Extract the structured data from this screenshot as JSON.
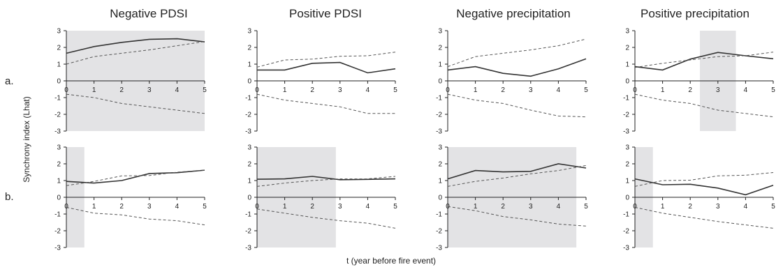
{
  "figure": {
    "ylabel": "Synchrony index (Lhat)",
    "xlabel": "t (year before fire event)",
    "row_labels": [
      "a.",
      "b."
    ],
    "column_titles": [
      "Negative PDSI",
      "Positive PDSI",
      "Negative precipitation",
      "Positive precipitation"
    ],
    "x_ticks": [
      "0",
      "1",
      "2",
      "3",
      "4",
      "5"
    ],
    "y_ticks": [
      "3",
      "2",
      "1",
      "0",
      "-1",
      "-2",
      "-3"
    ]
  },
  "colors": {
    "line": "#333333",
    "dashed": "#555555",
    "shade": "#e3e3e5",
    "axis": "#222222"
  },
  "chart_data": [
    {
      "type": "line",
      "row": "a.",
      "title": "Negative PDSI",
      "x": [
        0,
        1,
        2,
        3,
        4,
        5
      ],
      "xlim": [
        0,
        5
      ],
      "ylim": [
        -3,
        3
      ],
      "series": [
        {
          "values": [
            1.65,
            2.05,
            2.3,
            2.48,
            2.52,
            2.33
          ]
        },
        {
          "values": [
            1.0,
            1.45,
            1.65,
            1.85,
            2.1,
            2.35
          ]
        },
        {
          "values": [
            -0.8,
            -1.0,
            -1.35,
            -1.55,
            -1.75,
            -1.95
          ]
        }
      ],
      "shaded_x": [
        0,
        5
      ]
    },
    {
      "type": "line",
      "row": "a.",
      "title": "Positive PDSI",
      "x": [
        0,
        1,
        2,
        3,
        4,
        5
      ],
      "xlim": [
        0,
        5
      ],
      "ylim": [
        -3,
        3
      ],
      "series": [
        {
          "values": [
            0.65,
            0.65,
            1.05,
            1.1,
            0.48,
            0.72
          ]
        },
        {
          "values": [
            0.82,
            1.25,
            1.3,
            1.47,
            1.5,
            1.72
          ]
        },
        {
          "values": [
            -0.8,
            -1.15,
            -1.35,
            -1.55,
            -1.95,
            -1.95
          ]
        }
      ],
      "shaded_x": null
    },
    {
      "type": "line",
      "row": "a.",
      "title": "Negative precipitation",
      "x": [
        0,
        1,
        2,
        3,
        4,
        5
      ],
      "xlim": [
        0,
        5
      ],
      "ylim": [
        -3,
        3
      ],
      "series": [
        {
          "values": [
            0.65,
            0.85,
            0.45,
            0.28,
            0.72,
            1.32
          ]
        },
        {
          "values": [
            0.85,
            1.45,
            1.65,
            1.85,
            2.1,
            2.5
          ]
        },
        {
          "values": [
            -0.8,
            -1.15,
            -1.35,
            -1.75,
            -2.1,
            -2.15
          ]
        }
      ],
      "shaded_x": null
    },
    {
      "type": "line",
      "row": "a.",
      "title": "Positive precipitation",
      "x": [
        0,
        1,
        2,
        3,
        4,
        5
      ],
      "xlim": [
        0,
        5
      ],
      "ylim": [
        -3,
        3
      ],
      "series": [
        {
          "values": [
            0.85,
            0.65,
            1.3,
            1.7,
            1.5,
            1.32
          ]
        },
        {
          "values": [
            0.8,
            1.05,
            1.25,
            1.45,
            1.5,
            1.72
          ]
        },
        {
          "values": [
            -0.8,
            -1.15,
            -1.35,
            -1.75,
            -1.95,
            -2.15
          ]
        }
      ],
      "shaded_x": [
        2.35,
        3.65
      ]
    },
    {
      "type": "line",
      "row": "b.",
      "title": "",
      "x": [
        0,
        1,
        2,
        3,
        4,
        5
      ],
      "xlim": [
        0,
        5
      ],
      "ylim": [
        -3,
        3
      ],
      "series": [
        {
          "values": [
            0.95,
            0.85,
            1.0,
            1.42,
            1.47,
            1.62
          ]
        },
        {
          "values": [
            0.7,
            0.95,
            1.28,
            1.3,
            1.5,
            1.62
          ]
        },
        {
          "values": [
            -0.6,
            -0.95,
            -1.05,
            -1.3,
            -1.4,
            -1.65
          ]
        }
      ],
      "shaded_x": [
        0,
        0.65
      ]
    },
    {
      "type": "line",
      "row": "b.",
      "title": "",
      "x": [
        0,
        1,
        2,
        3,
        4,
        5
      ],
      "xlim": [
        0,
        5
      ],
      "ylim": [
        -3,
        3
      ],
      "series": [
        {
          "values": [
            1.08,
            1.1,
            1.25,
            1.05,
            1.07,
            1.1
          ]
        },
        {
          "values": [
            0.65,
            0.85,
            1.0,
            1.1,
            1.1,
            1.25
          ]
        },
        {
          "values": [
            -0.7,
            -0.95,
            -1.2,
            -1.4,
            -1.55,
            -1.85
          ]
        }
      ],
      "shaded_x": [
        0,
        2.85
      ]
    },
    {
      "type": "line",
      "row": "b.",
      "title": "",
      "x": [
        0,
        1,
        2,
        3,
        4,
        5
      ],
      "xlim": [
        0,
        5
      ],
      "ylim": [
        -3,
        3
      ],
      "series": [
        {
          "values": [
            1.1,
            1.6,
            1.52,
            1.55,
            2.0,
            1.75
          ]
        },
        {
          "values": [
            0.65,
            0.95,
            1.15,
            1.4,
            1.6,
            1.9
          ]
        },
        {
          "values": [
            -0.55,
            -0.8,
            -1.15,
            -1.35,
            -1.6,
            -1.72
          ]
        }
      ],
      "shaded_x": [
        0,
        4.65
      ]
    },
    {
      "type": "line",
      "row": "b.",
      "title": "",
      "x": [
        0,
        1,
        2,
        3,
        4,
        5
      ],
      "xlim": [
        0,
        5
      ],
      "ylim": [
        -3,
        3
      ],
      "series": [
        {
          "values": [
            1.1,
            0.75,
            0.78,
            0.55,
            0.15,
            0.72
          ]
        },
        {
          "values": [
            0.65,
            1.0,
            1.02,
            1.28,
            1.32,
            1.48
          ]
        },
        {
          "values": [
            -0.6,
            -0.95,
            -1.2,
            -1.45,
            -1.65,
            -1.85
          ]
        }
      ],
      "shaded_x": [
        0,
        0.65
      ]
    }
  ]
}
